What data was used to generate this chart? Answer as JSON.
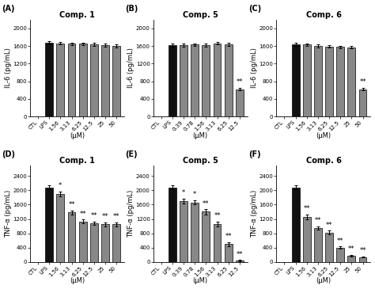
{
  "panels": [
    {
      "label": "(A)",
      "title": "Comp. 1",
      "ylabel": "IL-6 (pg/mL)",
      "xlabel": "(μM)",
      "xtick_labels": [
        "CTL",
        "LPS",
        "1.56",
        "3.13",
        "6.25",
        "12.5",
        "25",
        "50"
      ],
      "values": [
        0,
        1680,
        1660,
        1650,
        1650,
        1640,
        1620,
        1600
      ],
      "errors": [
        0,
        30,
        30,
        30,
        30,
        30,
        30,
        30
      ],
      "bar_colors": [
        "#ffffff",
        "#111111",
        "#888888",
        "#888888",
        "#888888",
        "#888888",
        "#888888",
        "#888888"
      ],
      "sig_labels": [
        "",
        "",
        "",
        "",
        "",
        "",
        "",
        ""
      ],
      "ylim": [
        0,
        2200
      ],
      "yticks": [
        0,
        400,
        800,
        1200,
        1600,
        2000
      ]
    },
    {
      "label": "(B)",
      "title": "Comp. 5",
      "ylabel": "IL-6 (pg/mL)",
      "xlabel": "(μM)",
      "xtick_labels": [
        "CTL",
        "LPS",
        "0.39",
        "0.78",
        "1.56",
        "3.13",
        "6.25",
        "12.5"
      ],
      "values": [
        0,
        1620,
        1620,
        1630,
        1620,
        1660,
        1640,
        620
      ],
      "errors": [
        0,
        30,
        30,
        30,
        30,
        30,
        30,
        30
      ],
      "bar_colors": [
        "#ffffff",
        "#111111",
        "#888888",
        "#888888",
        "#888888",
        "#888888",
        "#888888",
        "#888888"
      ],
      "sig_labels": [
        "",
        "",
        "",
        "",
        "",
        "",
        "",
        "**"
      ],
      "ylim": [
        0,
        2200
      ],
      "yticks": [
        0,
        400,
        800,
        1200,
        1600,
        2000
      ]
    },
    {
      "label": "(C)",
      "title": "Comp. 6",
      "ylabel": "IL-6 (pg/mL)",
      "xlabel": "(μM)",
      "xtick_labels": [
        "CTL",
        "LPS",
        "1.56",
        "3.13",
        "6.25",
        "12.5",
        "25",
        "50"
      ],
      "values": [
        0,
        1640,
        1630,
        1600,
        1590,
        1580,
        1570,
        620
      ],
      "errors": [
        0,
        30,
        30,
        30,
        30,
        30,
        30,
        30
      ],
      "bar_colors": [
        "#ffffff",
        "#111111",
        "#888888",
        "#888888",
        "#888888",
        "#888888",
        "#888888",
        "#888888"
      ],
      "sig_labels": [
        "",
        "",
        "",
        "",
        "",
        "",
        "",
        "**"
      ],
      "ylim": [
        0,
        2200
      ],
      "yticks": [
        0,
        400,
        800,
        1200,
        1600,
        2000
      ]
    },
    {
      "label": "(D)",
      "title": "Comp. 1",
      "ylabel": "TNF-α (pg/mL)",
      "xlabel": "(μM)",
      "xtick_labels": [
        "CTL",
        "LPS",
        "1.56",
        "3.13",
        "6.25",
        "12.5",
        "25",
        "50"
      ],
      "values": [
        0,
        2080,
        1900,
        1380,
        1130,
        1080,
        1050,
        1050
      ],
      "errors": [
        0,
        50,
        60,
        60,
        50,
        50,
        50,
        50
      ],
      "bar_colors": [
        "#ffffff",
        "#111111",
        "#888888",
        "#888888",
        "#888888",
        "#888888",
        "#888888",
        "#888888"
      ],
      "sig_labels": [
        "",
        "",
        "*",
        "**",
        "**",
        "**",
        "**",
        "**"
      ],
      "ylim": [
        0,
        2700
      ],
      "yticks": [
        0,
        400,
        800,
        1200,
        1600,
        2000,
        2400
      ]
    },
    {
      "label": "(E)",
      "title": "Comp. 5",
      "ylabel": "TNF-α (pg/mL)",
      "xlabel": "(μM)",
      "xtick_labels": [
        "CTL",
        "LPS",
        "0.39",
        "0.78",
        "1.56",
        "3.13",
        "6.25",
        "12.5"
      ],
      "values": [
        0,
        2080,
        1700,
        1660,
        1400,
        1060,
        500,
        40
      ],
      "errors": [
        0,
        50,
        60,
        60,
        70,
        60,
        50,
        15
      ],
      "bar_colors": [
        "#ffffff",
        "#111111",
        "#888888",
        "#888888",
        "#888888",
        "#888888",
        "#888888",
        "#888888"
      ],
      "sig_labels": [
        "",
        "",
        "*",
        "*",
        "**",
        "**",
        "**",
        "**"
      ],
      "ylim": [
        0,
        2700
      ],
      "yticks": [
        0,
        400,
        800,
        1200,
        1600,
        2000,
        2400
      ]
    },
    {
      "label": "(F)",
      "title": "Comp. 6",
      "ylabel": "TNF-α (pg/mL)",
      "xlabel": "(μM)",
      "xtick_labels": [
        "CTL",
        "LPS",
        "1.56",
        "3.13",
        "6.25",
        "12.5",
        "25",
        "50"
      ],
      "values": [
        0,
        2080,
        1260,
        950,
        820,
        400,
        180,
        140
      ],
      "errors": [
        0,
        50,
        60,
        50,
        50,
        30,
        20,
        20
      ],
      "bar_colors": [
        "#ffffff",
        "#111111",
        "#888888",
        "#888888",
        "#888888",
        "#888888",
        "#888888",
        "#888888"
      ],
      "sig_labels": [
        "",
        "",
        "**",
        "**",
        "**",
        "**",
        "**",
        "**"
      ],
      "ylim": [
        0,
        2700
      ],
      "yticks": [
        0,
        400,
        800,
        1200,
        1600,
        2000,
        2400
      ]
    }
  ],
  "figure_bg": "#ffffff",
  "panel_label_fontsize": 7,
  "title_fontsize": 7,
  "axis_label_fontsize": 6,
  "tick_fontsize": 5,
  "sig_fontsize": 6,
  "bar_width": 0.7,
  "capsize": 1.5,
  "error_lw": 0.7
}
